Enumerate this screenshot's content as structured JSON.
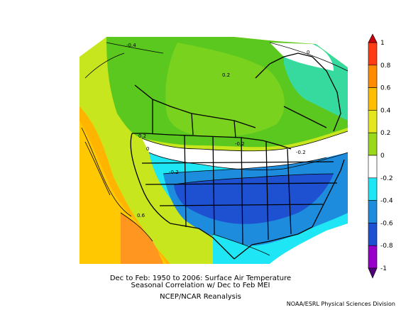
{
  "caption": {
    "line1": "Dec to Feb: 1950 to 2006: Surface Air Temperature",
    "line2": "Seasonal Correlation w/ Dec to Feb MEI",
    "line3": "NCEP/NCAR Reanalysis",
    "credit": "NOAA/ESRL Physical Sciences Division"
  },
  "colorbar": {
    "levels": [
      {
        "label": "1",
        "color": "#d4000f"
      },
      {
        "label": "0.8",
        "color": "#ff6a00"
      },
      {
        "label": "0.6",
        "color": "#ffa800"
      },
      {
        "label": "0.4",
        "color": "#ffd400"
      },
      {
        "label": "0.2",
        "color": "#9ad81c"
      },
      {
        "label": "0",
        "color": "#3cc81e"
      },
      {
        "label": "-0.2",
        "color": "#ffffff"
      },
      {
        "label": "-0.4",
        "color": "#1ee6f5"
      },
      {
        "label": "-0.6",
        "color": "#1e8cdc"
      },
      {
        "label": "-0.8",
        "color": "#1e50d2"
      },
      {
        "label": "-1",
        "color": "#7a00c8"
      }
    ],
    "extra_colors": [
      "#b400c8",
      "#500078"
    ]
  },
  "contour_labels": [
    "-0.4",
    "0",
    "0.2",
    "-0.2",
    "0",
    "-0.2",
    "-0.2",
    "-0.2",
    "0.2",
    "0.6"
  ]
}
